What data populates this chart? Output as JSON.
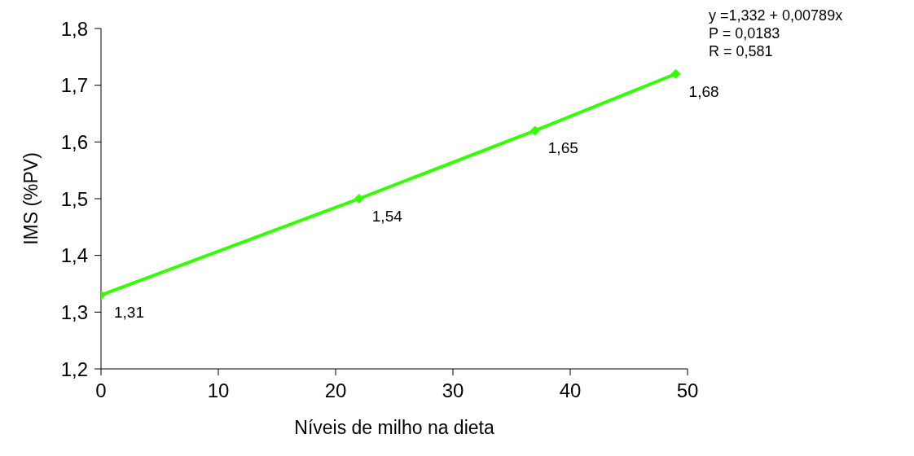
{
  "chart_data": {
    "type": "line",
    "xlabel": "Níveis de milho na dieta",
    "ylabel": "IMS (%PV)",
    "x": [
      0,
      22,
      37,
      49
    ],
    "series": [
      {
        "color": "#33ff00",
        "values": [
          1.33,
          1.5,
          1.62,
          1.72
        ]
      }
    ],
    "xlim": [
      0,
      50
    ],
    "xticks": [
      0,
      10,
      20,
      30,
      40,
      50
    ],
    "ylim": [
      1.2,
      1.8
    ],
    "yticks": [
      {
        "value": 1.2,
        "label": "1,2"
      },
      {
        "value": 1.3,
        "label": "1,3"
      },
      {
        "value": 1.4,
        "label": "1,4"
      },
      {
        "value": 1.5,
        "label": "1,5"
      },
      {
        "value": 1.6,
        "label": "1,6"
      },
      {
        "value": 1.7,
        "label": "1,7"
      },
      {
        "value": 1.8,
        "label": "1,8"
      }
    ],
    "marker": "diamond",
    "line_style": "solid",
    "grid": false,
    "annotations": [
      "y =1,332 + 0,00789x",
      "P = 0,0183",
      "R = 0,581",
      {
        "text": "1,31",
        "x": 0,
        "y": 1.33
      },
      {
        "text": "1,54",
        "x": 22,
        "y": 1.5
      },
      {
        "text": "1,65",
        "x": 37,
        "y": 1.62
      },
      {
        "text": "1,68",
        "x": 49,
        "y": 1.72
      }
    ]
  }
}
